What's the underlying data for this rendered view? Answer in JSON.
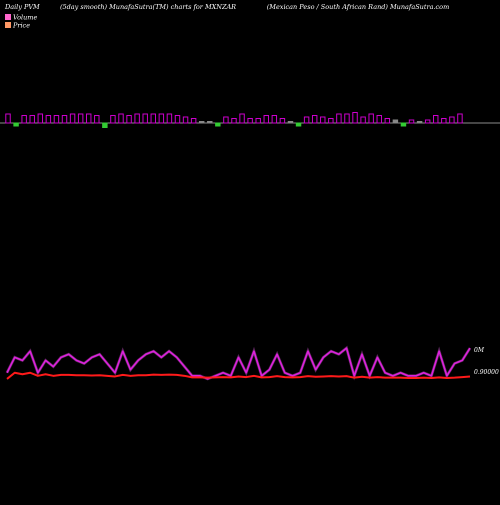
{
  "header": {
    "left": "Daily PVM",
    "center": "(5day smooth) MunafaSutra(TM) charts for MXNZAR",
    "right": "(Mexican  Peso  / South African  Rand) MunafaSutra.com"
  },
  "legend": [
    {
      "label": "Volume",
      "color": "#ff66cc"
    },
    {
      "label": "Price",
      "color": "#ff9966"
    }
  ],
  "colors": {
    "background": "#000000",
    "volume_up": "#cc00cc",
    "volume_down": "#33cc33",
    "volume_flat": "#888888",
    "baseline": "#bbbbbb",
    "pvm_line": "#dd22dd",
    "price_line": "#ff1a1a",
    "text": "#ffffff"
  },
  "chart_data": [
    {
      "type": "bar",
      "title": "",
      "series": [
        {
          "name": "Volume",
          "values": [
            6,
            -2,
            5,
            5,
            6,
            5,
            5,
            5,
            6,
            6,
            6,
            5,
            -3,
            5,
            6,
            5,
            6,
            6,
            6,
            6,
            6,
            5,
            4,
            3,
            1,
            1,
            -2,
            4,
            3,
            6,
            3,
            3,
            5,
            5,
            3,
            1,
            -2,
            4,
            5,
            4,
            3,
            6,
            6,
            7,
            4,
            6,
            5,
            3,
            2,
            -2,
            2,
            1,
            2,
            5,
            3,
            4,
            6
          ],
          "up_down": [
            "up",
            "down",
            "up",
            "up",
            "up",
            "up",
            "up",
            "up",
            "up",
            "up",
            "up",
            "up",
            "down",
            "up",
            "up",
            "up",
            "up",
            "up",
            "up",
            "up",
            "up",
            "up",
            "up",
            "up",
            "flat",
            "flat",
            "down",
            "up",
            "up",
            "up",
            "up",
            "up",
            "up",
            "up",
            "up",
            "flat",
            "down",
            "up",
            "up",
            "up",
            "up",
            "up",
            "up",
            "up",
            "up",
            "up",
            "up",
            "up",
            "flat",
            "down",
            "up",
            "flat",
            "up",
            "up",
            "up",
            "up",
            "up"
          ]
        }
      ]
    },
    {
      "type": "line",
      "title": "",
      "y_tick_labels": [
        "0M",
        "0.90000"
      ],
      "series": [
        {
          "name": "PVM",
          "values": [
            0.9,
            0.95,
            0.94,
            0.97,
            0.9,
            0.94,
            0.92,
            0.95,
            0.96,
            0.94,
            0.93,
            0.95,
            0.96,
            0.93,
            0.9,
            0.97,
            0.91,
            0.94,
            0.96,
            0.97,
            0.95,
            0.97,
            0.95,
            0.92,
            0.89,
            0.89,
            0.88,
            0.89,
            0.9,
            0.89,
            0.95,
            0.9,
            0.97,
            0.89,
            0.91,
            0.96,
            0.9,
            0.89,
            0.9,
            0.97,
            0.91,
            0.95,
            0.97,
            0.96,
            0.98,
            0.89,
            0.96,
            0.89,
            0.95,
            0.9,
            0.89,
            0.9,
            0.89,
            0.89,
            0.9,
            0.89,
            0.97,
            0.89,
            0.93,
            0.94,
            0.98
          ]
        },
        {
          "name": "Price",
          "values": [
            0.88,
            0.9,
            0.895,
            0.9,
            0.89,
            0.895,
            0.89,
            0.893,
            0.893,
            0.892,
            0.892,
            0.891,
            0.892,
            0.89,
            0.888,
            0.893,
            0.89,
            0.892,
            0.892,
            0.894,
            0.893,
            0.894,
            0.893,
            0.89,
            0.885,
            0.885,
            0.884,
            0.885,
            0.886,
            0.885,
            0.888,
            0.886,
            0.89,
            0.885,
            0.886,
            0.889,
            0.886,
            0.885,
            0.886,
            0.889,
            0.887,
            0.888,
            0.889,
            0.888,
            0.889,
            0.884,
            0.887,
            0.884,
            0.886,
            0.884,
            0.884,
            0.884,
            0.883,
            0.883,
            0.884,
            0.883,
            0.885,
            0.883,
            0.884,
            0.886,
            0.888
          ]
        }
      ]
    }
  ]
}
